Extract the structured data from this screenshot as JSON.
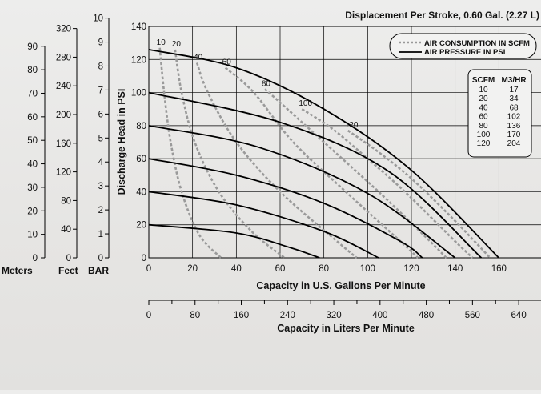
{
  "chart_data": {
    "type": "line",
    "title": "Displacement Per Stroke, 0.60 Gal. (2.27 L)",
    "xlabel": "Capacity in U.S. Gallons Per Minute",
    "xlabel2": "Capacity in Liters Per Minute",
    "ylabel": "Discharge Head in PSI",
    "xlim": [
      0,
      180
    ],
    "ylim": [
      0,
      140
    ],
    "x_ticks": [
      "0",
      "20",
      "40",
      "60",
      "80",
      "100",
      "120",
      "140",
      "160"
    ],
    "y_ticks": [
      "0",
      "20",
      "40",
      "60",
      "80",
      "100",
      "120",
      "140"
    ],
    "x2_ticks": [
      "0",
      "80",
      "160",
      "240",
      "320",
      "400",
      "480",
      "560",
      "640"
    ],
    "grid": true,
    "secondary_axes": [
      {
        "label": "Meters",
        "ticks": [
          "0",
          "10",
          "20",
          "30",
          "40",
          "50",
          "60",
          "70",
          "80",
          "90"
        ]
      },
      {
        "label": "Feet",
        "ticks": [
          "0",
          "40",
          "80",
          "120",
          "160",
          "200",
          "240",
          "280",
          "320"
        ]
      },
      {
        "label": "BAR",
        "ticks": [
          "0",
          "1",
          "2",
          "3",
          "4",
          "5",
          "6",
          "7",
          "8",
          "9",
          "10"
        ]
      }
    ],
    "legend": {
      "position": "top-right",
      "entries": [
        {
          "style": "dashed",
          "label": "AIR CONSUMPTION IN SCFM"
        },
        {
          "style": "solid",
          "label": "AIR PRESSURE IN PSI"
        }
      ]
    },
    "colors": {
      "pressure": "#000000",
      "consumption": "#9a9a9a"
    },
    "pressure_series": [
      {
        "points": [
          [
            0,
            20
          ],
          [
            40,
            15
          ],
          [
            65,
            6
          ],
          [
            78,
            0
          ]
        ]
      },
      {
        "points": [
          [
            0,
            40
          ],
          [
            40,
            32
          ],
          [
            80,
            16
          ],
          [
            105,
            0
          ]
        ]
      },
      {
        "points": [
          [
            0,
            60
          ],
          [
            40,
            50
          ],
          [
            80,
            33
          ],
          [
            115,
            10
          ],
          [
            125,
            0
          ]
        ]
      },
      {
        "points": [
          [
            0,
            80
          ],
          [
            50,
            67
          ],
          [
            100,
            39
          ],
          [
            140,
            0
          ]
        ]
      },
      {
        "points": [
          [
            0,
            100
          ],
          [
            60,
            82
          ],
          [
            110,
            52
          ],
          [
            152,
            0
          ]
        ]
      },
      {
        "points": [
          [
            0,
            126
          ],
          [
            40,
            115
          ],
          [
            80,
            90
          ],
          [
            120,
            53
          ],
          [
            160,
            0
          ]
        ]
      }
    ],
    "consumption_series": [
      {
        "label": "10",
        "points": [
          [
            5,
            127
          ],
          [
            7,
            100
          ],
          [
            10,
            70
          ],
          [
            15,
            40
          ],
          [
            23,
            14
          ],
          [
            33,
            0
          ]
        ]
      },
      {
        "label": "20",
        "points": [
          [
            12,
            126
          ],
          [
            15,
            100
          ],
          [
            21,
            70
          ],
          [
            32,
            40
          ],
          [
            47,
            16
          ],
          [
            62,
            0
          ]
        ]
      },
      {
        "label": "40",
        "points": [
          [
            22,
            118
          ],
          [
            27,
            100
          ],
          [
            40,
            70
          ],
          [
            60,
            40
          ],
          [
            86,
            10
          ],
          [
            95,
            0
          ]
        ]
      },
      {
        "label": "60",
        "points": [
          [
            35,
            115
          ],
          [
            48,
            100
          ],
          [
            66,
            70
          ],
          [
            90,
            40
          ],
          [
            115,
            10
          ],
          [
            123,
            0
          ]
        ]
      },
      {
        "label": "80",
        "points": [
          [
            53,
            102
          ],
          [
            60,
            94
          ],
          [
            80,
            70
          ],
          [
            105,
            40
          ],
          [
            127,
            12
          ],
          [
            136,
            0
          ]
        ]
      },
      {
        "label": "100",
        "points": [
          [
            70,
            90
          ],
          [
            84,
            78
          ],
          [
            100,
            60
          ],
          [
            117,
            40
          ],
          [
            140,
            10
          ],
          [
            148,
            0
          ]
        ]
      },
      {
        "label": "120",
        "points": [
          [
            91,
            77
          ],
          [
            105,
            64
          ],
          [
            120,
            48
          ],
          [
            138,
            25
          ],
          [
            156,
            0
          ]
        ]
      }
    ],
    "table": {
      "headers": [
        "SCFM",
        "M3/HR"
      ],
      "rows": [
        [
          "10",
          "17"
        ],
        [
          "20",
          "34"
        ],
        [
          "40",
          "68"
        ],
        [
          "60",
          "102"
        ],
        [
          "80",
          "136"
        ],
        [
          "100",
          "170"
        ],
        [
          "120",
          "204"
        ]
      ]
    }
  }
}
